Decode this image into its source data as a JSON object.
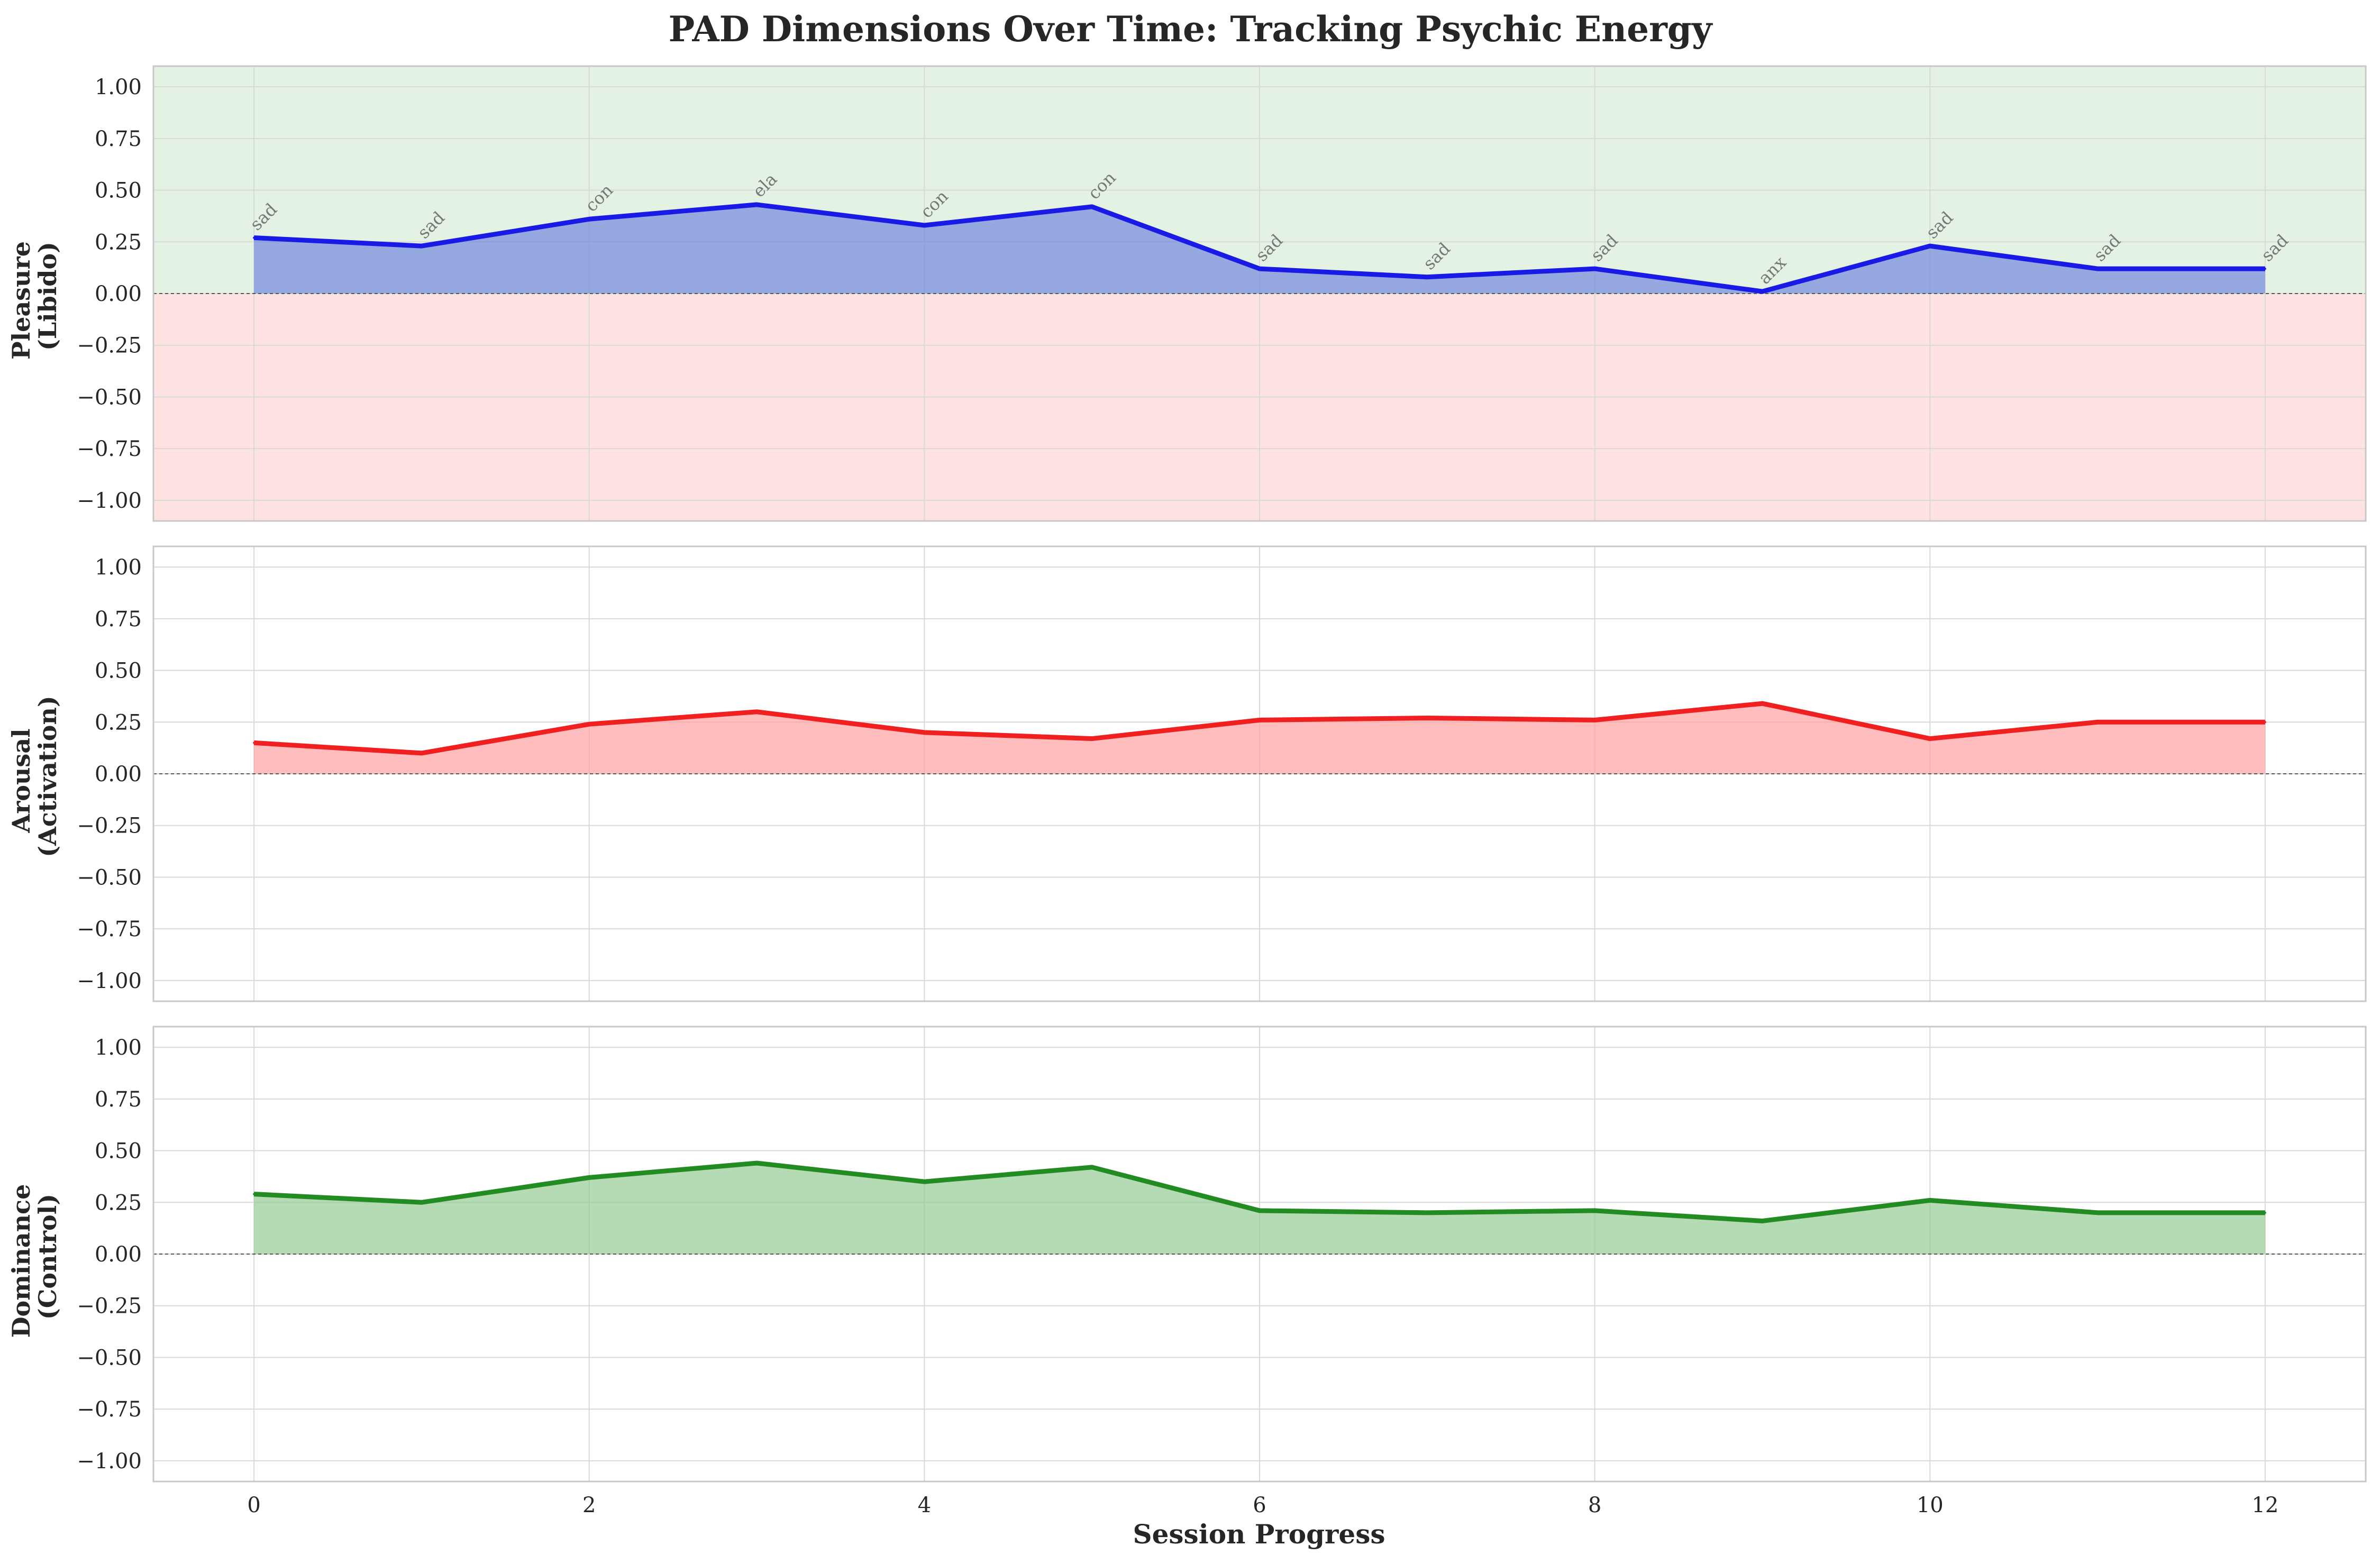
{
  "chart_data": {
    "type": "line",
    "title": "PAD Dimensions Over Time: Tracking Psychic Energy",
    "xlabel": "Session Progress",
    "x": [
      0,
      1,
      2,
      3,
      4,
      5,
      6,
      7,
      8,
      9,
      10,
      11,
      12
    ],
    "xlim": [
      -0.6,
      12.6
    ],
    "x_ticks": [
      "0",
      "2",
      "4",
      "6",
      "8",
      "10",
      "12"
    ],
    "ylim": [
      -1.1,
      1.1
    ],
    "y_ticks": [
      "1.00",
      "0.75",
      "0.50",
      "0.25",
      "0.00",
      "−0.25",
      "−0.50",
      "−0.75",
      "−1.00"
    ],
    "grid": true,
    "panels": [
      {
        "ylabel_line1": "Pleasure",
        "ylabel_line2": "(Libido)",
        "color": "#1a1ae6",
        "fill_color": "#6a7fdd",
        "background_positive": "#e4f2e4",
        "background_negative": "#ffe3e3",
        "values": [
          0.27,
          0.23,
          0.36,
          0.43,
          0.33,
          0.42,
          0.12,
          0.08,
          0.12,
          0.01,
          0.23,
          0.12,
          0.12
        ],
        "point_labels": [
          "sad",
          "sad",
          "con",
          "ela",
          "con",
          "con",
          "sad",
          "sad",
          "sad",
          "anx",
          "sad",
          "sad",
          "sad"
        ]
      },
      {
        "ylabel_line1": "Arousal",
        "ylabel_line2": "(Activation)",
        "color": "#f02020",
        "fill_color": "#ff9a9a",
        "values": [
          0.15,
          0.1,
          0.24,
          0.3,
          0.2,
          0.17,
          0.26,
          0.27,
          0.26,
          0.34,
          0.17,
          0.25,
          0.25
        ]
      },
      {
        "ylabel_line1": "Dominance",
        "ylabel_line2": "(Control)",
        "color": "#228b22",
        "fill_color": "#8cc88c",
        "values": [
          0.29,
          0.25,
          0.37,
          0.44,
          0.35,
          0.42,
          0.21,
          0.2,
          0.21,
          0.16,
          0.26,
          0.2,
          0.2
        ]
      }
    ]
  }
}
